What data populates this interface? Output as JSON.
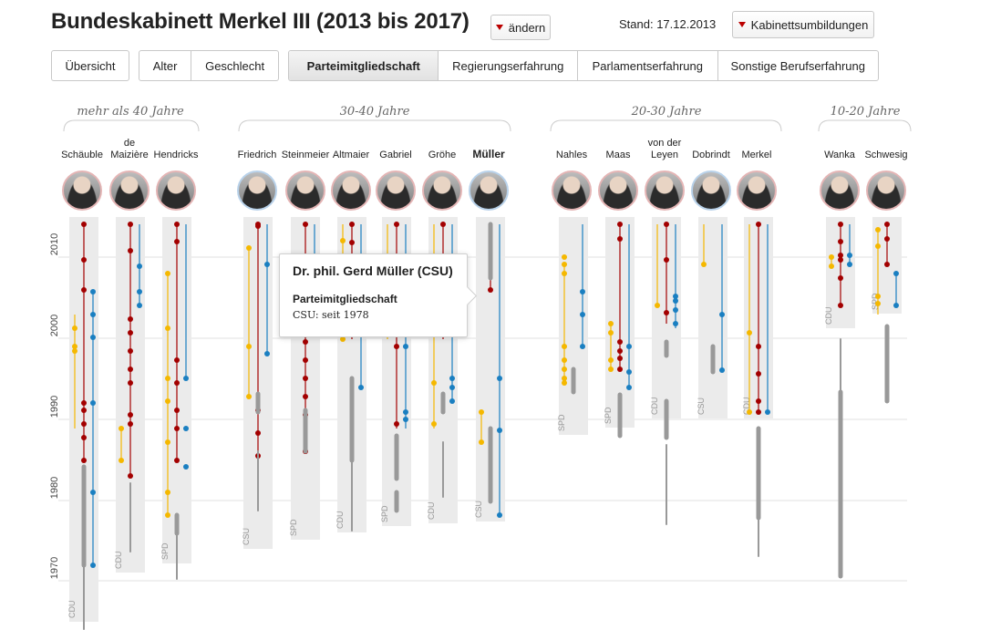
{
  "header": {
    "title": "Bundeskabinett  Merkel III (2013 bis 2017)",
    "change_label": "ändern",
    "stand": "Stand: 17.12.2013",
    "reshuffle_label": "Kabinettsumbildungen"
  },
  "tabs": [
    {
      "label": "Übersicht",
      "active": false
    },
    {
      "label": "Alter",
      "active": false
    },
    {
      "label": "Geschlecht",
      "active": false
    },
    {
      "label": "Parteimitgliedschaft",
      "active": true
    },
    {
      "label": "Regierungserfahrung",
      "active": false
    },
    {
      "label": "Parlamentserfahrung",
      "active": false
    },
    {
      "label": "Sonstige Berufserfahrung",
      "active": false
    }
  ],
  "age_groups": [
    "mehr als 40 Jahre",
    "30-40 Jahre",
    "20-30 Jahre",
    "10-20 Jahre"
  ],
  "ministers": [
    {
      "name": "Schäuble",
      "party": "CDU"
    },
    {
      "name": "de\nMaizière",
      "party": "CDU"
    },
    {
      "name": "Hendricks",
      "party": "SPD"
    },
    {
      "name": "Friedrich",
      "party": "CSU"
    },
    {
      "name": "Steinmeier",
      "party": "SPD"
    },
    {
      "name": "Altmaier",
      "party": "CDU"
    },
    {
      "name": "Gabriel",
      "party": "SPD"
    },
    {
      "name": "Gröhe",
      "party": "CDU"
    },
    {
      "name": "Müller",
      "party": "CSU",
      "selected": true
    },
    {
      "name": "Nahles",
      "party": "SPD"
    },
    {
      "name": "Maas",
      "party": "SPD"
    },
    {
      "name": "von der\nLeyen",
      "party": "CDU"
    },
    {
      "name": "Dobrindt",
      "party": "CSU"
    },
    {
      "name": "Merkel",
      "party": "CDU"
    },
    {
      "name": "Wanka",
      "party": "CDU"
    },
    {
      "name": "Schwesig",
      "party": "SPD"
    }
  ],
  "y_axis": {
    "ticks": [
      "2010",
      "2000",
      "1990",
      "1980",
      "1970"
    ],
    "range": [
      1965,
      2013
    ]
  },
  "colors": {
    "government": "#f5b800",
    "party_office": "#a30000",
    "parliament": "#1a7fc1",
    "membership": "#999999",
    "band": "#ebebeb"
  },
  "tooltip": {
    "title": "Dr. phil. Gerd Müller (CSU)",
    "section": "Parteimitgliedschaft",
    "value": "CSU: seit 1978"
  }
}
